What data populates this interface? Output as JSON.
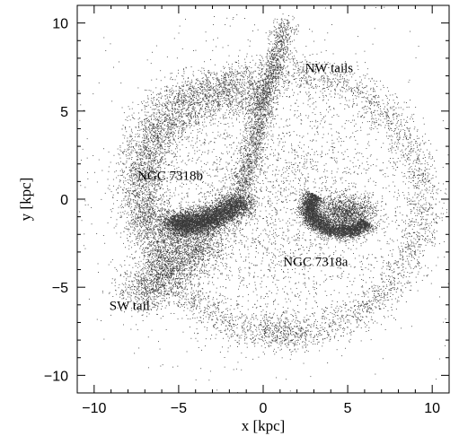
{
  "chart_data": {
    "type": "scatter",
    "title": "",
    "xlabel": "x [kpc]",
    "ylabel": "y [kpc]",
    "xlim": [
      -11,
      11
    ],
    "ylim": [
      -11,
      11
    ],
    "xticks": [
      -10,
      -5,
      0,
      5,
      10
    ],
    "yticks": [
      -10,
      -5,
      0,
      5,
      10
    ],
    "grid": false,
    "point_color": "#3a3a3a",
    "annotations": [
      {
        "text": "NW tails",
        "x": 3.9,
        "y": 7.2
      },
      {
        "text": "NGC 7318b",
        "x": -5.5,
        "y": 1.1
      },
      {
        "text": "NGC 7318a",
        "x": 3.1,
        "y": -3.8
      },
      {
        "text": "SW tail",
        "x": -7.9,
        "y": -6.3
      }
    ],
    "features": [
      {
        "name": "NGC 7318b",
        "center": [
          -2.4,
          -0.6
        ]
      },
      {
        "name": "NGC 7318a",
        "center": [
          4.3,
          -1.0
        ]
      },
      {
        "name": "NW tails",
        "center": [
          2.5,
          6.0
        ]
      },
      {
        "name": "SW tail",
        "center": [
          -6.5,
          -3.5
        ]
      }
    ]
  }
}
